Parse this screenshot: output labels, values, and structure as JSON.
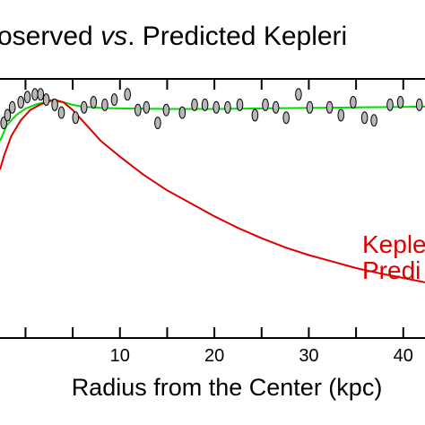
{
  "chart_data": {
    "type": "line",
    "title": "Observed vs. Predicted Keplerian",
    "title_parts": [
      "oserved ",
      "vs",
      ". Predicted Kepleri"
    ],
    "xlabel": "Radius from the Center (kpc)",
    "ylabel": "",
    "xlim": [
      -2.7,
      42.3
    ],
    "ylim": [
      0,
      100
    ],
    "x_tick_labels": [
      "10",
      "20",
      "30",
      "40"
    ],
    "x_tick_values": [
      10,
      20,
      30,
      40
    ],
    "annotation_lines": [
      "Keple",
      "Predi"
    ],
    "colors": {
      "observed_points_fill": "#b8b8b8",
      "observed_fit": "#00dd00",
      "keplerian": "#dd0000",
      "axes": "#000000"
    },
    "series": [
      {
        "name": "",
        "kind": "points",
        "x": [
          -2.3,
          -1.9,
          -1.4,
          -0.5,
          0.2,
          1.0,
          1.6,
          2.2,
          3.1,
          3.8,
          5.3,
          6.2,
          7.2,
          8.4,
          9.4,
          10.8,
          11.9,
          12.8,
          14.0,
          14.9,
          16.6,
          17.9,
          19.0,
          20.2,
          21.4,
          22.7,
          24.3,
          25.4,
          26.5,
          27.6,
          28.9,
          30.1,
          32.2,
          33.4,
          34.7,
          35.9,
          36.9,
          38.6,
          39.7,
          41.7
        ],
        "y": [
          83,
          86,
          89,
          91,
          93,
          94,
          94,
          92,
          90,
          87,
          85,
          89,
          91,
          90,
          92,
          94,
          88,
          89,
          83,
          88,
          87,
          90,
          90,
          89,
          89,
          90,
          86,
          90,
          89,
          85,
          94,
          89,
          89,
          86,
          91,
          85,
          84,
          90,
          91,
          90
        ]
      },
      {
        "name": "",
        "kind": "line",
        "x": [
          -2.7,
          -2.0,
          -1.0,
          0.0,
          1.0,
          2.0,
          3.0,
          4.0,
          5.0,
          6.0,
          8.0,
          10.0,
          15.0,
          20.0,
          25.0,
          30.0,
          35.0,
          40.0,
          42.3
        ],
        "y": [
          76,
          82,
          86,
          88.5,
          90,
          91,
          91.5,
          91,
          90,
          89.3,
          88.8,
          88.6,
          88.4,
          88.4,
          88.6,
          88.8,
          89,
          89.2,
          89.3
        ]
      },
      {
        "name": "",
        "kind": "line",
        "x": [
          -2.7,
          -2.3,
          -1.5,
          -0.5,
          0.5,
          1.5,
          2.5,
          3.0,
          4.0,
          5.0,
          6.0,
          7.0,
          8.0,
          9.0,
          10.0,
          12.5,
          15.0,
          17.5,
          20.0,
          22.5,
          25.0,
          27.5,
          30.0,
          32.5,
          35.0,
          37.5,
          40.0,
          42.3
        ],
        "y": [
          65,
          70,
          78,
          84,
          88,
          90,
          91.5,
          92,
          91,
          88,
          84,
          80,
          76,
          73,
          70,
          63,
          57,
          52,
          47,
          42.5,
          38.5,
          35,
          32,
          29.5,
          27,
          25,
          23.2,
          21.5
        ]
      }
    ]
  }
}
